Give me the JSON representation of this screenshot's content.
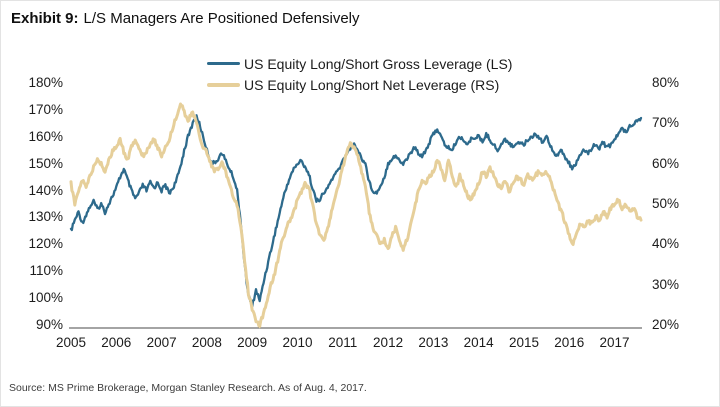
{
  "title": {
    "prefix": "Exhibit 9:",
    "text": "L/S Managers Are Positioned Defensively"
  },
  "legend": [
    {
      "label": "US Equity Long/Short Gross Leverage (LS)",
      "color": "#2d6a8c"
    },
    {
      "label": "US Equity Long/Short Net Leverage (RS)",
      "color": "#e6cf9a"
    }
  ],
  "source": "Source: MS Prime Brokerage, Morgan Stanley Research. As of Aug. 4, 2017.",
  "chart_data": {
    "type": "line",
    "title": "L/S Managers Are Positioned Defensively",
    "x_unit": "monthly, Jan 2005 - Aug 2017",
    "categories_x": [
      "2005",
      "2006",
      "2007",
      "2008",
      "2009",
      "2010",
      "2011",
      "2012",
      "2013",
      "2014",
      "2015",
      "2016",
      "2017"
    ],
    "grid": false,
    "legend_position": "top-center",
    "left_axis": {
      "min": 90,
      "max": 180,
      "ticks": [
        "180%",
        "170%",
        "160%",
        "150%",
        "140%",
        "130%",
        "120%",
        "110%",
        "100%",
        "90%"
      ]
    },
    "right_axis": {
      "min": 20,
      "max": 80,
      "ticks": [
        "80%",
        "70%",
        "60%",
        "50%",
        "40%",
        "30%",
        "20%"
      ]
    },
    "series": [
      {
        "name": "US Equity Long/Short Gross Leverage (LS)",
        "axis": "left",
        "color": "#2d6a8c",
        "width": 2.3,
        "values": [
          125,
          129,
          132,
          128,
          131,
          134,
          136,
          133,
          135,
          132,
          135,
          138,
          141,
          145,
          148,
          144,
          140,
          137,
          139,
          142,
          140,
          143,
          141,
          143,
          140,
          142,
          139,
          141,
          144,
          149,
          155,
          160,
          164,
          168,
          165,
          160,
          155,
          151,
          150,
          152,
          154,
          151,
          148,
          145,
          140,
          128,
          112,
          101,
          97,
          103,
          99,
          106,
          112,
          118,
          124,
          130,
          136,
          141,
          145,
          148,
          150,
          151,
          149,
          146,
          141,
          136,
          137,
          139,
          141,
          144,
          146,
          148,
          151,
          154,
          156,
          157,
          155,
          152,
          150,
          143,
          140,
          139,
          142,
          145,
          150,
          152,
          153,
          151,
          150,
          152,
          154,
          156,
          154,
          153,
          155,
          158,
          161,
          163,
          160,
          157,
          156,
          155,
          158,
          160,
          159,
          157,
          159,
          160,
          160,
          158,
          161,
          159,
          157,
          155,
          157,
          159,
          158,
          156,
          158,
          158,
          157,
          159,
          160,
          161,
          160,
          158,
          160,
          157,
          154,
          153,
          155,
          152,
          150,
          148,
          151,
          153,
          155,
          154,
          156,
          157,
          156,
          158,
          156,
          157,
          159,
          161,
          163,
          162,
          164,
          165,
          166,
          167
        ]
      },
      {
        "name": "US Equity Long/Short Net Leverage (RS)",
        "axis": "right",
        "color": "#e6cf9a",
        "width": 3,
        "values": [
          55,
          50,
          53,
          56,
          54,
          57,
          59,
          61,
          60,
          58,
          61,
          63,
          64,
          66,
          63,
          61,
          64,
          66,
          64,
          62,
          63,
          65,
          66,
          64,
          62,
          64,
          66,
          69,
          72,
          75,
          73,
          70,
          73,
          71,
          67,
          64,
          63,
          60,
          58,
          59,
          60,
          58,
          55,
          52,
          50,
          44,
          36,
          28,
          24,
          21,
          20,
          23,
          26,
          30,
          33,
          37,
          41,
          44,
          46,
          48,
          51,
          53,
          55,
          54,
          50,
          45,
          42,
          41,
          44,
          48,
          52,
          55,
          59,
          63,
          65,
          64,
          62,
          58,
          54,
          48,
          44,
          42,
          40,
          41,
          39,
          42,
          44,
          41,
          39,
          41,
          45,
          49,
          53,
          56,
          55,
          57,
          58,
          61,
          59,
          56,
          61,
          57,
          54,
          57,
          55,
          52,
          51,
          53,
          55,
          58,
          57,
          59,
          57,
          55,
          54,
          56,
          53,
          55,
          57,
          56,
          55,
          57,
          56,
          57,
          58,
          57,
          58,
          56,
          53,
          50,
          48,
          45,
          42,
          40,
          43,
          45,
          44,
          46,
          45,
          47,
          46,
          48,
          47,
          49,
          50,
          51,
          49,
          50,
          48,
          49,
          47,
          46
        ]
      }
    ]
  }
}
